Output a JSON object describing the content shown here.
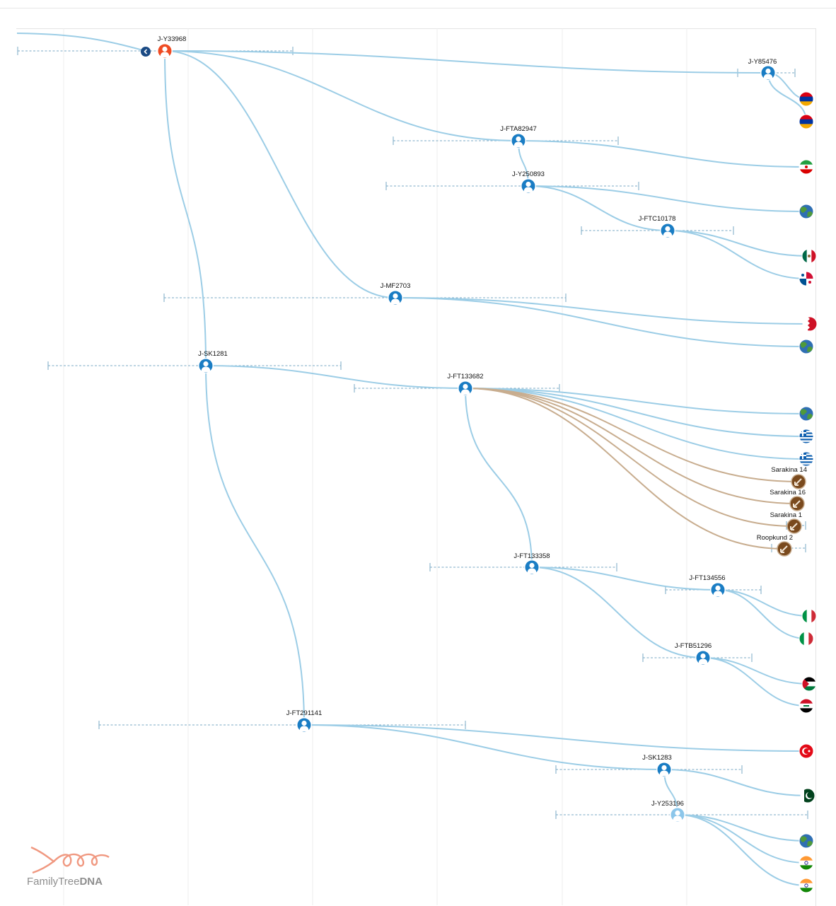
{
  "haplogroups": {
    "root": "J-Y33968",
    "y85476": "J-Y85476",
    "fta82947": "J-FTA82947",
    "y250893": "J-Y250893",
    "ftc10178": "J-FTC10178",
    "mf2703": "J-MF2703",
    "sk1281": "J-SK1281",
    "ft133682": "J-FT133682",
    "ft133358": "J-FT133358",
    "ft134556": "J-FT134556",
    "ftb51296": "J-FTB51296",
    "ft291141": "J-FT291141",
    "sk1283": "J-SK1283",
    "y253196": "J-Y253196"
  },
  "ancient": {
    "s14": "Sarakina 14",
    "s16": "Sarakina 16",
    "s1": "Sarakina 1",
    "r2": "Roopkund 2"
  },
  "leaves": [
    {
      "icon": "armenia-flag-icon"
    },
    {
      "icon": "armenia-flag-icon"
    },
    {
      "icon": "iran-flag-icon"
    },
    {
      "icon": "globe-icon"
    },
    {
      "icon": "mexico-flag-icon"
    },
    {
      "icon": "panama-flag-icon"
    },
    {
      "icon": "bahrain-flag-icon"
    },
    {
      "icon": "globe-icon"
    },
    {
      "icon": "globe-icon"
    },
    {
      "icon": "greece-flag-icon"
    },
    {
      "icon": "greece-flag-icon"
    },
    {
      "icon": "italy-flag-icon"
    },
    {
      "icon": "italy-flag-icon"
    },
    {
      "icon": "palestine-flag-icon"
    },
    {
      "icon": "iraq-flag-icon"
    },
    {
      "icon": "turkey-flag-icon"
    },
    {
      "icon": "pakistan-flag-icon"
    },
    {
      "icon": "globe-icon"
    },
    {
      "icon": "india-flag-icon"
    },
    {
      "icon": "india-flag-icon"
    }
  ],
  "logo": {
    "text_part1": "FamilyTree",
    "text_part2": "DNA"
  },
  "colors": {
    "branch": "#9ccde6",
    "ancient_branch": "#c8ad8f",
    "node": "#1a7dc4",
    "root_node": "#ef4b23",
    "ancient_node": "#7a4a1e",
    "collapse": "#1b4a84",
    "logo": "#f09880"
  }
}
